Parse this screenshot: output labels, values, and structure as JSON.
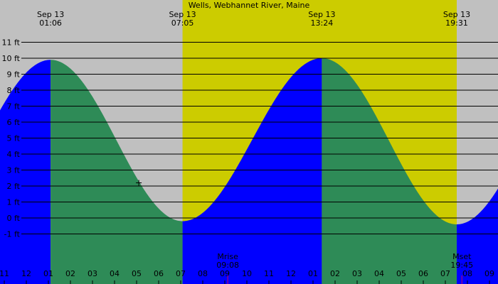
{
  "chart_data": {
    "type": "area",
    "title": "Wells, Webhannet River, Maine",
    "xlabel": "",
    "ylabel": "",
    "x_unit": "hours",
    "xlim": [
      23.0,
      33.6
    ],
    "ylim": [
      -1.6,
      11.6
    ],
    "daylight": [
      7.083,
      19.517
    ],
    "y_ticks": [
      -1,
      0,
      1,
      2,
      3,
      4,
      5,
      6,
      7,
      8,
      9,
      10,
      11
    ],
    "y_tick_labels": [
      "-1 ft",
      "0 ft",
      "1 ft",
      "2 ft",
      "3 ft",
      "4 ft",
      "5 ft",
      "6 ft",
      "7 ft",
      "8 ft",
      "9 ft",
      "10 ft",
      "11 ft"
    ],
    "x_ticks": [
      23,
      24,
      25,
      26,
      27,
      28,
      29,
      30,
      31,
      32,
      33,
      34,
      35,
      36,
      37,
      38,
      39,
      40,
      41,
      42,
      43,
      44,
      45,
      46
    ],
    "x_tick_labels": [
      "11",
      "12",
      "01",
      "02",
      "03",
      "04",
      "05",
      "06",
      "07",
      "08",
      "09",
      "10",
      "11",
      "12",
      "01",
      "02",
      "03",
      "04",
      "05",
      "06",
      "07",
      "08",
      "09",
      ""
    ],
    "tides": [
      {
        "type": "high",
        "hour": 1.1,
        "height": 9.9,
        "date": "Sep 13",
        "time": "01:06"
      },
      {
        "type": "low",
        "hour": 7.083,
        "height": -0.2,
        "date": "Sep 13",
        "time": "07:05"
      },
      {
        "type": "high",
        "hour": 13.4,
        "height": 10.0,
        "date": "Sep 13",
        "time": "13:24"
      },
      {
        "type": "low",
        "hour": 19.517,
        "height": -0.4,
        "date": "Sep 13",
        "time": "19:31"
      }
    ],
    "tide_extrapolate": {
      "before": {
        "hour": -5.0,
        "height": -0.3
      },
      "after": {
        "hour": 25.6,
        "height": 10.0
      }
    },
    "events": [
      {
        "label": "Mrise",
        "time": "09:08",
        "hour": 9.133
      },
      {
        "label": "Mset",
        "time": "19:45",
        "hour": 19.75
      }
    ],
    "marker": {
      "hour": 5.1,
      "height": 2.2
    },
    "colors": {
      "night": "#c0c0c0",
      "day": "#cccc00",
      "rising": "#0000ff",
      "falling": "#2e8b57",
      "gridline": "#000000",
      "moon_tick": "#cc0066"
    }
  }
}
